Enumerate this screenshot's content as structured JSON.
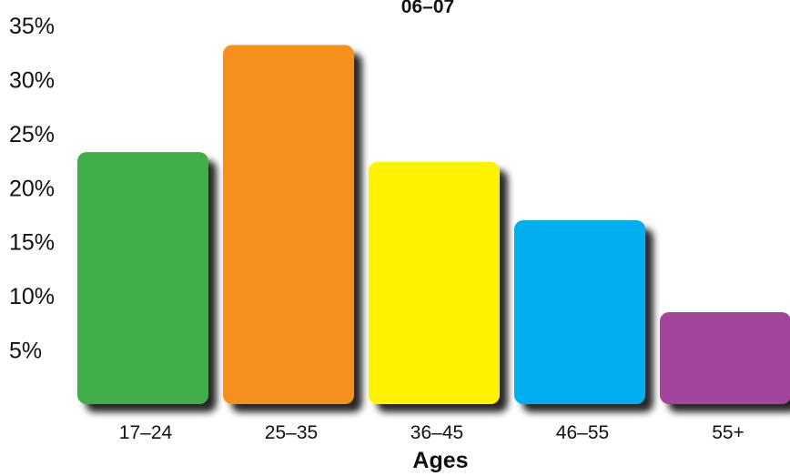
{
  "chart_data": {
    "type": "bar",
    "title": "06–07",
    "xlabel": "Ages",
    "ylabel": "",
    "categories": [
      "17–24",
      "25–35",
      "36–45",
      "46–55",
      "55+"
    ],
    "values": [
      23.3,
      33.2,
      22.4,
      17.0,
      8.5
    ],
    "colors": [
      "#3fae4a",
      "#f5901f",
      "#fff200",
      "#00aeef",
      "#a3449a"
    ],
    "ylim": [
      0,
      35
    ],
    "ytick_values": [
      5,
      10,
      15,
      20,
      25,
      30,
      35
    ],
    "ytick_labels": [
      "5%",
      "10%",
      "15%",
      "20%",
      "25%",
      "30%",
      "35%"
    ],
    "grid": false,
    "legend": "none"
  }
}
